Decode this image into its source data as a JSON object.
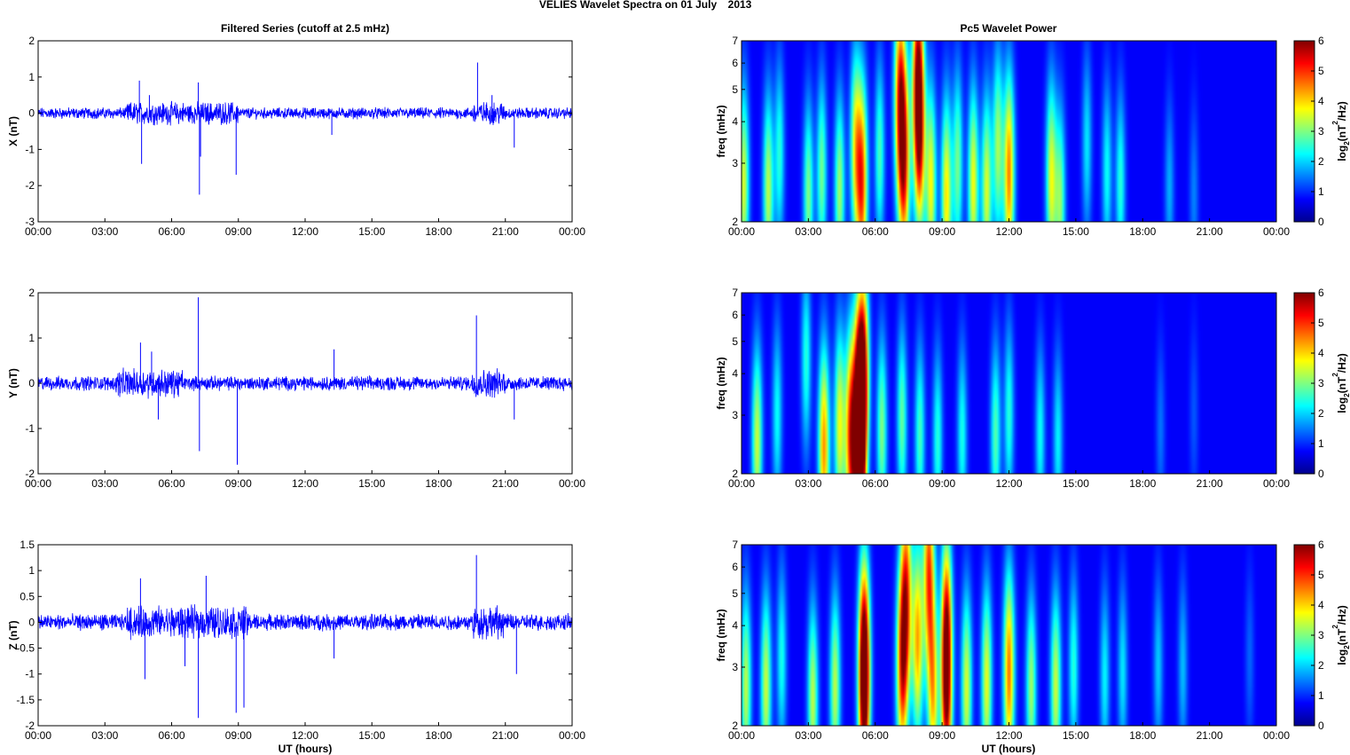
{
  "figure": {
    "title_left": "VELIES Wavelet Spectra on 01 July",
    "title_right": "2013",
    "left_column_title": "Filtered Series (cutoff at 2.5 mHz)",
    "right_column_title": "Pc5 Wavelet Power",
    "xlabel": "UT (hours)",
    "time_ticks": [
      "00:00",
      "03:00",
      "06:00",
      "09:00",
      "12:00",
      "15:00",
      "18:00",
      "21:00",
      "00:00"
    ],
    "colorbar_label_base": "log",
    "colorbar_label_sub": "2",
    "colorbar_label_body": "(nT",
    "colorbar_label_sup": "2",
    "colorbar_label_tail": "/Hz)",
    "colorbar_ticks": [
      "0",
      "1",
      "2",
      "3",
      "4",
      "5",
      "6"
    ],
    "freq_ylabel": "freq (mHz)",
    "freq_ticks": [
      "2",
      "3",
      "4",
      "5",
      "6",
      "7"
    ]
  },
  "chart_data": [
    {
      "type": "line",
      "component": "X",
      "ylabel": "X (nT)",
      "ylim": [
        -3,
        2
      ],
      "yticks": [
        "-3",
        "-2",
        "-1",
        "0",
        "1",
        "2"
      ],
      "xlim_hours": [
        0,
        24
      ],
      "color": "#0000ff",
      "noise_amplitude_nT": 0.12,
      "active_intervals_hours": [
        [
          4.0,
          6.5
        ],
        [
          6.5,
          9.0
        ],
        [
          19.5,
          21.0
        ]
      ],
      "spikes": [
        {
          "t": 4.55,
          "v": 0.9
        },
        {
          "t": 4.65,
          "v": -1.4
        },
        {
          "t": 5.0,
          "v": 0.5
        },
        {
          "t": 7.2,
          "v": 0.85
        },
        {
          "t": 7.25,
          "v": -2.25
        },
        {
          "t": 7.3,
          "v": -1.2
        },
        {
          "t": 8.9,
          "v": -1.7
        },
        {
          "t": 13.2,
          "v": -0.6
        },
        {
          "t": 19.75,
          "v": 1.4
        },
        {
          "t": 20.4,
          "v": 0.5
        },
        {
          "t": 21.4,
          "v": -0.95
        }
      ]
    },
    {
      "type": "line",
      "component": "Y",
      "ylabel": "Y (nT)",
      "ylim": [
        -2,
        2
      ],
      "yticks": [
        "-2",
        "-1",
        "0",
        "1",
        "2"
      ],
      "xlim_hours": [
        0,
        24
      ],
      "color": "#0000ff",
      "noise_amplitude_nT": 0.12,
      "active_intervals_hours": [
        [
          3.5,
          6.5
        ],
        [
          19.5,
          21.0
        ]
      ],
      "spikes": [
        {
          "t": 4.6,
          "v": 0.9
        },
        {
          "t": 5.1,
          "v": 0.7
        },
        {
          "t": 5.4,
          "v": -0.8
        },
        {
          "t": 7.2,
          "v": 1.9
        },
        {
          "t": 7.25,
          "v": -1.5
        },
        {
          "t": 8.95,
          "v": -1.8
        },
        {
          "t": 13.3,
          "v": 0.75
        },
        {
          "t": 19.7,
          "v": 1.5
        },
        {
          "t": 21.4,
          "v": -0.8
        }
      ]
    },
    {
      "type": "line",
      "component": "Z",
      "ylabel": "Z (nT)",
      "ylim": [
        -2,
        1.5
      ],
      "yticks": [
        "-2",
        "-1.5",
        "-1",
        "-0.5",
        "0",
        "0.5",
        "1",
        "1.5"
      ],
      "xlim_hours": [
        0,
        24
      ],
      "color": "#0000ff",
      "noise_amplitude_nT": 0.12,
      "active_intervals_hours": [
        [
          4.0,
          9.5
        ],
        [
          19.5,
          21.0
        ]
      ],
      "spikes": [
        {
          "t": 4.6,
          "v": 0.85
        },
        {
          "t": 4.8,
          "v": -1.1
        },
        {
          "t": 6.6,
          "v": -0.85
        },
        {
          "t": 7.2,
          "v": -1.85
        },
        {
          "t": 7.55,
          "v": 0.9
        },
        {
          "t": 8.9,
          "v": -1.75
        },
        {
          "t": 9.25,
          "v": -1.65
        },
        {
          "t": 13.3,
          "v": -0.7
        },
        {
          "t": 19.7,
          "v": 1.3
        },
        {
          "t": 21.5,
          "v": -1.0
        }
      ]
    },
    {
      "type": "heatmap",
      "component": "X",
      "ylabel": "freq (mHz)",
      "ylim_mHz": [
        2,
        7
      ],
      "yscale": "log",
      "xlim_hours": [
        0,
        24
      ],
      "clim": [
        0,
        6
      ],
      "colormap": "jet",
      "blobs": [
        {
          "t": 0.1,
          "f": 2.6,
          "p": 3.2
        },
        {
          "t": 1.2,
          "f": 2.5,
          "p": 3.0
        },
        {
          "t": 1.7,
          "f": 3.2,
          "p": 2.0
        },
        {
          "t": 3.0,
          "f": 2.4,
          "p": 2.6
        },
        {
          "t": 3.6,
          "f": 2.8,
          "p": 2.5
        },
        {
          "t": 4.4,
          "f": 2.5,
          "p": 2.8
        },
        {
          "t": 5.4,
          "f": 2.6,
          "p": 4.7
        },
        {
          "t": 5.1,
          "f": 3.4,
          "p": 3.0
        },
        {
          "t": 6.2,
          "f": 3.2,
          "p": 2.2
        },
        {
          "t": 7.1,
          "f": 4.8,
          "p": 4.5
        },
        {
          "t": 7.3,
          "f": 3.0,
          "p": 4.8
        },
        {
          "t": 7.9,
          "f": 5.5,
          "p": 4.6
        },
        {
          "t": 8.0,
          "f": 3.6,
          "p": 4.2
        },
        {
          "t": 8.5,
          "f": 2.6,
          "p": 3.4
        },
        {
          "t": 9.2,
          "f": 2.4,
          "p": 3.6
        },
        {
          "t": 9.7,
          "f": 3.0,
          "p": 2.5
        },
        {
          "t": 10.4,
          "f": 2.6,
          "p": 3.4
        },
        {
          "t": 11.0,
          "f": 2.5,
          "p": 3.2
        },
        {
          "t": 11.5,
          "f": 3.4,
          "p": 2.8
        },
        {
          "t": 12.0,
          "f": 2.8,
          "p": 4.3
        },
        {
          "t": 13.9,
          "f": 2.7,
          "p": 3.3
        },
        {
          "t": 14.3,
          "f": 2.3,
          "p": 2.6
        },
        {
          "t": 15.5,
          "f": 3.4,
          "p": 1.6
        },
        {
          "t": 16.4,
          "f": 2.8,
          "p": 1.8
        },
        {
          "t": 17.0,
          "f": 2.6,
          "p": 2.0
        },
        {
          "t": 19.2,
          "f": 2.5,
          "p": 1.2
        },
        {
          "t": 20.3,
          "f": 2.4,
          "p": 0.9
        }
      ]
    },
    {
      "type": "heatmap",
      "component": "Y",
      "ylabel": "freq (mHz)",
      "ylim_mHz": [
        2,
        7
      ],
      "yscale": "log",
      "xlim_hours": [
        0,
        24
      ],
      "clim": [
        0,
        6
      ],
      "colormap": "jet",
      "blobs": [
        {
          "t": 0.7,
          "f": 2.5,
          "p": 3.1
        },
        {
          "t": 1.6,
          "f": 3.0,
          "p": 1.8
        },
        {
          "t": 2.9,
          "f": 4.4,
          "p": 2.0
        },
        {
          "t": 3.7,
          "f": 2.4,
          "p": 4.2
        },
        {
          "t": 4.4,
          "f": 2.8,
          "p": 3.3
        },
        {
          "t": 4.9,
          "f": 2.6,
          "p": 4.9
        },
        {
          "t": 5.3,
          "f": 2.2,
          "p": 5.8
        },
        {
          "t": 5.3,
          "f": 3.4,
          "p": 5.0
        },
        {
          "t": 5.5,
          "f": 4.2,
          "p": 3.6
        },
        {
          "t": 6.3,
          "f": 2.7,
          "p": 2.6
        },
        {
          "t": 7.2,
          "f": 2.9,
          "p": 2.4
        },
        {
          "t": 8.0,
          "f": 2.6,
          "p": 2.2
        },
        {
          "t": 8.8,
          "f": 2.5,
          "p": 2.0
        },
        {
          "t": 9.9,
          "f": 2.6,
          "p": 1.9
        },
        {
          "t": 11.4,
          "f": 2.6,
          "p": 2.3
        },
        {
          "t": 12.0,
          "f": 3.0,
          "p": 2.0
        },
        {
          "t": 13.4,
          "f": 2.6,
          "p": 1.8
        },
        {
          "t": 14.2,
          "f": 2.5,
          "p": 1.7
        },
        {
          "t": 18.8,
          "f": 2.7,
          "p": 0.8
        },
        {
          "t": 20.3,
          "f": 3.0,
          "p": 0.6
        }
      ]
    },
    {
      "type": "heatmap",
      "component": "Z",
      "ylabel": "freq (mHz)",
      "ylim_mHz": [
        2,
        7
      ],
      "yscale": "log",
      "xlim_hours": [
        0,
        24
      ],
      "clim": [
        0,
        6
      ],
      "colormap": "jet",
      "blobs": [
        {
          "t": 0.2,
          "f": 2.6,
          "p": 3.0
        },
        {
          "t": 1.1,
          "f": 2.6,
          "p": 3.1
        },
        {
          "t": 1.8,
          "f": 3.2,
          "p": 1.9
        },
        {
          "t": 3.2,
          "f": 2.4,
          "p": 3.0
        },
        {
          "t": 4.2,
          "f": 2.6,
          "p": 3.0
        },
        {
          "t": 5.5,
          "f": 2.5,
          "p": 4.9
        },
        {
          "t": 5.5,
          "f": 3.4,
          "p": 3.8
        },
        {
          "t": 7.2,
          "f": 3.0,
          "p": 4.6
        },
        {
          "t": 7.4,
          "f": 5.0,
          "p": 4.4
        },
        {
          "t": 7.9,
          "f": 3.6,
          "p": 4.0
        },
        {
          "t": 8.4,
          "f": 5.8,
          "p": 4.6
        },
        {
          "t": 8.6,
          "f": 2.5,
          "p": 3.6
        },
        {
          "t": 9.2,
          "f": 2.5,
          "p": 4.6
        },
        {
          "t": 9.2,
          "f": 4.0,
          "p": 3.8
        },
        {
          "t": 10.1,
          "f": 2.6,
          "p": 3.2
        },
        {
          "t": 11.0,
          "f": 2.7,
          "p": 3.3
        },
        {
          "t": 12.0,
          "f": 2.9,
          "p": 4.4
        },
        {
          "t": 13.0,
          "f": 2.6,
          "p": 2.8
        },
        {
          "t": 14.1,
          "f": 2.6,
          "p": 3.1
        },
        {
          "t": 14.9,
          "f": 3.0,
          "p": 2.0
        },
        {
          "t": 16.3,
          "f": 2.8,
          "p": 1.7
        },
        {
          "t": 17.1,
          "f": 2.9,
          "p": 1.6
        },
        {
          "t": 18.7,
          "f": 3.0,
          "p": 1.4
        },
        {
          "t": 19.8,
          "f": 3.0,
          "p": 1.3
        },
        {
          "t": 22.8,
          "f": 3.2,
          "p": 0.7
        }
      ]
    }
  ]
}
